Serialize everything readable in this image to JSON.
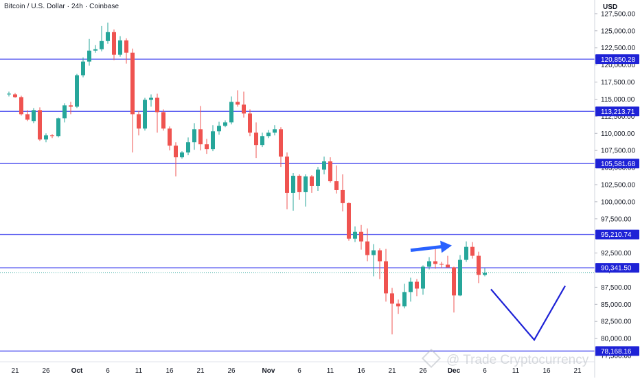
{
  "header": {
    "title": "Bitcoin / U.S. Dollar · 24h · Coinbase",
    "currency": "USD"
  },
  "watermark": "@ Trade Cryptocurrency",
  "colors": {
    "up": "#26a69a",
    "down": "#ef5350",
    "level_line": "#5b5ef0",
    "level_label_bg": "#1e22d6",
    "arrow": "#2962ff",
    "projection": "#1e22d6"
  },
  "chart_data": {
    "type": "candlestick",
    "title": "Bitcoin / U.S. Dollar · 24h · Coinbase",
    "ylim": [
      76600,
      129500
    ],
    "y_ticks": [
      {
        "value": 127500,
        "label": "127,500.00"
      },
      {
        "value": 125000,
        "label": "125,000.00"
      },
      {
        "value": 122500,
        "label": "122,500.00"
      },
      {
        "value": 120000,
        "label": "120,000.00"
      },
      {
        "value": 117500,
        "label": "117,500.00"
      },
      {
        "value": 115000,
        "label": "115,000.00"
      },
      {
        "value": 112500,
        "label": "112,500.00"
      },
      {
        "value": 110000,
        "label": "110,000.00"
      },
      {
        "value": 107500,
        "label": "107,500.00"
      },
      {
        "value": 105000,
        "label": "105,000.00"
      },
      {
        "value": 102500,
        "label": "102,500.00"
      },
      {
        "value": 100000,
        "label": "100,000.00"
      },
      {
        "value": 97500,
        "label": "97,500.00"
      },
      {
        "value": 95000,
        "label": "95,000.00"
      },
      {
        "value": 92500,
        "label": "92,500.00"
      },
      {
        "value": 90000,
        "label": "90,000.00"
      },
      {
        "value": 87500,
        "label": "87,500.00"
      },
      {
        "value": 85000,
        "label": "85,000.00"
      },
      {
        "value": 82500,
        "label": "82,500.00"
      },
      {
        "value": 80000,
        "label": "80,000.00"
      },
      {
        "value": 77500,
        "label": "77,500.00"
      }
    ],
    "x_ticks": [
      {
        "date": "2025-09-21",
        "label": "21"
      },
      {
        "date": "2025-09-26",
        "label": "26"
      },
      {
        "date": "2025-10-01",
        "label": "Oct"
      },
      {
        "date": "2025-10-06",
        "label": "6"
      },
      {
        "date": "2025-10-11",
        "label": "11"
      },
      {
        "date": "2025-10-16",
        "label": "16"
      },
      {
        "date": "2025-10-21",
        "label": "21"
      },
      {
        "date": "2025-10-26",
        "label": "26"
      },
      {
        "date": "2025-11-01",
        "label": "Nov"
      },
      {
        "date": "2025-11-06",
        "label": "6"
      },
      {
        "date": "2025-11-11",
        "label": "11"
      },
      {
        "date": "2025-11-16",
        "label": "16"
      },
      {
        "date": "2025-11-21",
        "label": "21"
      },
      {
        "date": "2025-11-26",
        "label": "26"
      },
      {
        "date": "2025-12-01",
        "label": "Dec"
      },
      {
        "date": "2025-12-06",
        "label": "6"
      },
      {
        "date": "2025-12-11",
        "label": "11"
      },
      {
        "date": "2025-12-16",
        "label": "16"
      },
      {
        "date": "2025-12-21",
        "label": "21"
      }
    ],
    "levels": [
      {
        "value": 120850.28,
        "label": "120,850.28"
      },
      {
        "value": 113213.71,
        "label": "113,213.71"
      },
      {
        "value": 105581.68,
        "label": "105,581.68"
      },
      {
        "value": 95210.74,
        "label": "95,210.74"
      },
      {
        "value": 90341.5,
        "label": "90,341.50"
      },
      {
        "value": 78168.16,
        "label": "78,168.16"
      }
    ],
    "last_price": 89620,
    "candles": [
      {
        "date": "2025-09-20",
        "o": 115700,
        "h": 116100,
        "l": 115400,
        "c": 115800
      },
      {
        "date": "2025-09-21",
        "o": 115700,
        "h": 115900,
        "l": 115200,
        "c": 115300
      },
      {
        "date": "2025-09-22",
        "o": 115300,
        "h": 115500,
        "l": 112600,
        "c": 112800
      },
      {
        "date": "2025-09-23",
        "o": 112800,
        "h": 113400,
        "l": 111800,
        "c": 112000
      },
      {
        "date": "2025-09-24",
        "o": 111800,
        "h": 113700,
        "l": 111500,
        "c": 113400
      },
      {
        "date": "2025-09-25",
        "o": 113400,
        "h": 113800,
        "l": 108900,
        "c": 109100
      },
      {
        "date": "2025-09-26",
        "o": 109100,
        "h": 110000,
        "l": 108700,
        "c": 109700
      },
      {
        "date": "2025-09-27",
        "o": 109700,
        "h": 109900,
        "l": 109300,
        "c": 109600
      },
      {
        "date": "2025-09-28",
        "o": 109600,
        "h": 112300,
        "l": 109400,
        "c": 112200
      },
      {
        "date": "2025-09-29",
        "o": 112200,
        "h": 114400,
        "l": 111600,
        "c": 114100
      },
      {
        "date": "2025-09-30",
        "o": 114100,
        "h": 114600,
        "l": 112800,
        "c": 113900
      },
      {
        "date": "2025-10-01",
        "o": 113900,
        "h": 118700,
        "l": 113700,
        "c": 118500
      },
      {
        "date": "2025-10-02",
        "o": 118500,
        "h": 121100,
        "l": 118200,
        "c": 120500
      },
      {
        "date": "2025-10-03",
        "o": 120500,
        "h": 123800,
        "l": 119900,
        "c": 122100
      },
      {
        "date": "2025-10-04",
        "o": 122100,
        "h": 122900,
        "l": 121800,
        "c": 122300
      },
      {
        "date": "2025-10-05",
        "o": 122300,
        "h": 125700,
        "l": 122000,
        "c": 123500
      },
      {
        "date": "2025-10-06",
        "o": 123500,
        "h": 126200,
        "l": 123100,
        "c": 124800
      },
      {
        "date": "2025-10-07",
        "o": 124800,
        "h": 125200,
        "l": 120700,
        "c": 121500
      },
      {
        "date": "2025-10-08",
        "o": 121500,
        "h": 124200,
        "l": 121200,
        "c": 123600
      },
      {
        "date": "2025-10-09",
        "o": 123600,
        "h": 123900,
        "l": 120200,
        "c": 121800
      },
      {
        "date": "2025-10-10",
        "o": 121800,
        "h": 122400,
        "l": 107200,
        "c": 112800
      },
      {
        "date": "2025-10-11",
        "o": 112800,
        "h": 113300,
        "l": 109700,
        "c": 110700
      },
      {
        "date": "2025-10-12",
        "o": 110700,
        "h": 115200,
        "l": 110400,
        "c": 114900
      },
      {
        "date": "2025-10-13",
        "o": 114900,
        "h": 115700,
        "l": 113900,
        "c": 115200
      },
      {
        "date": "2025-10-14",
        "o": 115200,
        "h": 115800,
        "l": 110100,
        "c": 113100
      },
      {
        "date": "2025-10-15",
        "o": 113100,
        "h": 113500,
        "l": 110400,
        "c": 110700
      },
      {
        "date": "2025-10-16",
        "o": 110700,
        "h": 111000,
        "l": 107500,
        "c": 108200
      },
      {
        "date": "2025-10-17",
        "o": 108200,
        "h": 108700,
        "l": 103700,
        "c": 106500
      },
      {
        "date": "2025-10-18",
        "o": 106500,
        "h": 107400,
        "l": 106300,
        "c": 107200
      },
      {
        "date": "2025-10-19",
        "o": 107200,
        "h": 109400,
        "l": 106800,
        "c": 108700
      },
      {
        "date": "2025-10-20",
        "o": 108700,
        "h": 111500,
        "l": 107600,
        "c": 110600
      },
      {
        "date": "2025-10-21",
        "o": 110600,
        "h": 114000,
        "l": 107500,
        "c": 108400
      },
      {
        "date": "2025-10-22",
        "o": 108400,
        "h": 109200,
        "l": 107000,
        "c": 107700
      },
      {
        "date": "2025-10-23",
        "o": 107700,
        "h": 111200,
        "l": 107400,
        "c": 110300
      },
      {
        "date": "2025-10-24",
        "o": 110300,
        "h": 111700,
        "l": 109800,
        "c": 111100
      },
      {
        "date": "2025-10-25",
        "o": 111100,
        "h": 111900,
        "l": 110900,
        "c": 111600
      },
      {
        "date": "2025-10-26",
        "o": 111600,
        "h": 115400,
        "l": 111300,
        "c": 114600
      },
      {
        "date": "2025-10-27",
        "o": 114600,
        "h": 116300,
        "l": 113900,
        "c": 114200
      },
      {
        "date": "2025-10-28",
        "o": 114200,
        "h": 116100,
        "l": 112300,
        "c": 112900
      },
      {
        "date": "2025-10-29",
        "o": 112900,
        "h": 113500,
        "l": 109600,
        "c": 110100
      },
      {
        "date": "2025-10-30",
        "o": 110100,
        "h": 111600,
        "l": 106400,
        "c": 108300
      },
      {
        "date": "2025-10-31",
        "o": 108300,
        "h": 110100,
        "l": 108000,
        "c": 109600
      },
      {
        "date": "2025-11-01",
        "o": 109600,
        "h": 110500,
        "l": 109300,
        "c": 110100
      },
      {
        "date": "2025-11-02",
        "o": 110100,
        "h": 111200,
        "l": 109700,
        "c": 110600
      },
      {
        "date": "2025-11-03",
        "o": 110600,
        "h": 110900,
        "l": 105100,
        "c": 106600
      },
      {
        "date": "2025-11-04",
        "o": 106600,
        "h": 107200,
        "l": 98900,
        "c": 101300
      },
      {
        "date": "2025-11-05",
        "o": 101300,
        "h": 104200,
        "l": 98700,
        "c": 103800
      },
      {
        "date": "2025-11-06",
        "o": 103800,
        "h": 104000,
        "l": 100300,
        "c": 101400
      },
      {
        "date": "2025-11-07",
        "o": 101400,
        "h": 104000,
        "l": 99300,
        "c": 103700
      },
      {
        "date": "2025-11-08",
        "o": 103700,
        "h": 103900,
        "l": 101300,
        "c": 102300
      },
      {
        "date": "2025-11-09",
        "o": 102300,
        "h": 105100,
        "l": 101600,
        "c": 104700
      },
      {
        "date": "2025-11-10",
        "o": 104700,
        "h": 106600,
        "l": 104000,
        "c": 105900
      },
      {
        "date": "2025-11-11",
        "o": 105900,
        "h": 106500,
        "l": 102800,
        "c": 103000
      },
      {
        "date": "2025-11-12",
        "o": 103000,
        "h": 105300,
        "l": 101200,
        "c": 101700
      },
      {
        "date": "2025-11-13",
        "o": 101700,
        "h": 104000,
        "l": 98600,
        "c": 99800
      },
      {
        "date": "2025-11-14",
        "o": 99800,
        "h": 99900,
        "l": 94300,
        "c": 94600
      },
      {
        "date": "2025-11-15",
        "o": 94600,
        "h": 96400,
        "l": 94100,
        "c": 95600
      },
      {
        "date": "2025-11-16",
        "o": 95600,
        "h": 96600,
        "l": 93000,
        "c": 94200
      },
      {
        "date": "2025-11-17",
        "o": 94200,
        "h": 96100,
        "l": 91300,
        "c": 92200
      },
      {
        "date": "2025-11-18",
        "o": 92200,
        "h": 93800,
        "l": 89100,
        "c": 92900
      },
      {
        "date": "2025-11-19",
        "o": 92900,
        "h": 93200,
        "l": 88700,
        "c": 91300
      },
      {
        "date": "2025-11-20",
        "o": 91300,
        "h": 93100,
        "l": 85400,
        "c": 86600
      },
      {
        "date": "2025-11-21",
        "o": 86600,
        "h": 87400,
        "l": 80600,
        "c": 85100
      },
      {
        "date": "2025-11-22",
        "o": 85100,
        "h": 85700,
        "l": 83600,
        "c": 84700
      },
      {
        "date": "2025-11-23",
        "o": 84700,
        "h": 88000,
        "l": 84400,
        "c": 86800
      },
      {
        "date": "2025-11-24",
        "o": 86800,
        "h": 88900,
        "l": 85400,
        "c": 88300
      },
      {
        "date": "2025-11-25",
        "o": 88300,
        "h": 88700,
        "l": 86200,
        "c": 87300
      },
      {
        "date": "2025-11-26",
        "o": 87300,
        "h": 90700,
        "l": 86400,
        "c": 90500
      },
      {
        "date": "2025-11-27",
        "o": 90500,
        "h": 91900,
        "l": 90100,
        "c": 91300
      },
      {
        "date": "2025-11-28",
        "o": 91300,
        "h": 93100,
        "l": 90200,
        "c": 90900
      },
      {
        "date": "2025-11-29",
        "o": 90900,
        "h": 91200,
        "l": 90300,
        "c": 90800
      },
      {
        "date": "2025-11-30",
        "o": 90800,
        "h": 92100,
        "l": 90400,
        "c": 90400
      },
      {
        "date": "2025-12-01",
        "o": 90400,
        "h": 90500,
        "l": 83800,
        "c": 86300
      },
      {
        "date": "2025-12-02",
        "o": 86300,
        "h": 92200,
        "l": 86200,
        "c": 91500
      },
      {
        "date": "2025-12-03",
        "o": 91500,
        "h": 94200,
        "l": 91200,
        "c": 93400
      },
      {
        "date": "2025-12-04",
        "o": 93400,
        "h": 94100,
        "l": 91700,
        "c": 92100
      },
      {
        "date": "2025-12-05",
        "o": 92100,
        "h": 92700,
        "l": 88100,
        "c": 89300
      },
      {
        "date": "2025-12-06",
        "o": 89300,
        "h": 90300,
        "l": 89100,
        "c": 89600
      }
    ],
    "annotations": [
      {
        "type": "arrow",
        "from": {
          "date": "2025-11-24",
          "price": 92900
        },
        "to": {
          "date": "2025-12-01",
          "price": 93600
        }
      },
      {
        "type": "polyline",
        "points": [
          {
            "date": "2025-12-07",
            "price": 87200
          },
          {
            "date": "2025-12-14",
            "price": 79800
          },
          {
            "date": "2025-12-19",
            "price": 87700
          }
        ]
      }
    ]
  }
}
